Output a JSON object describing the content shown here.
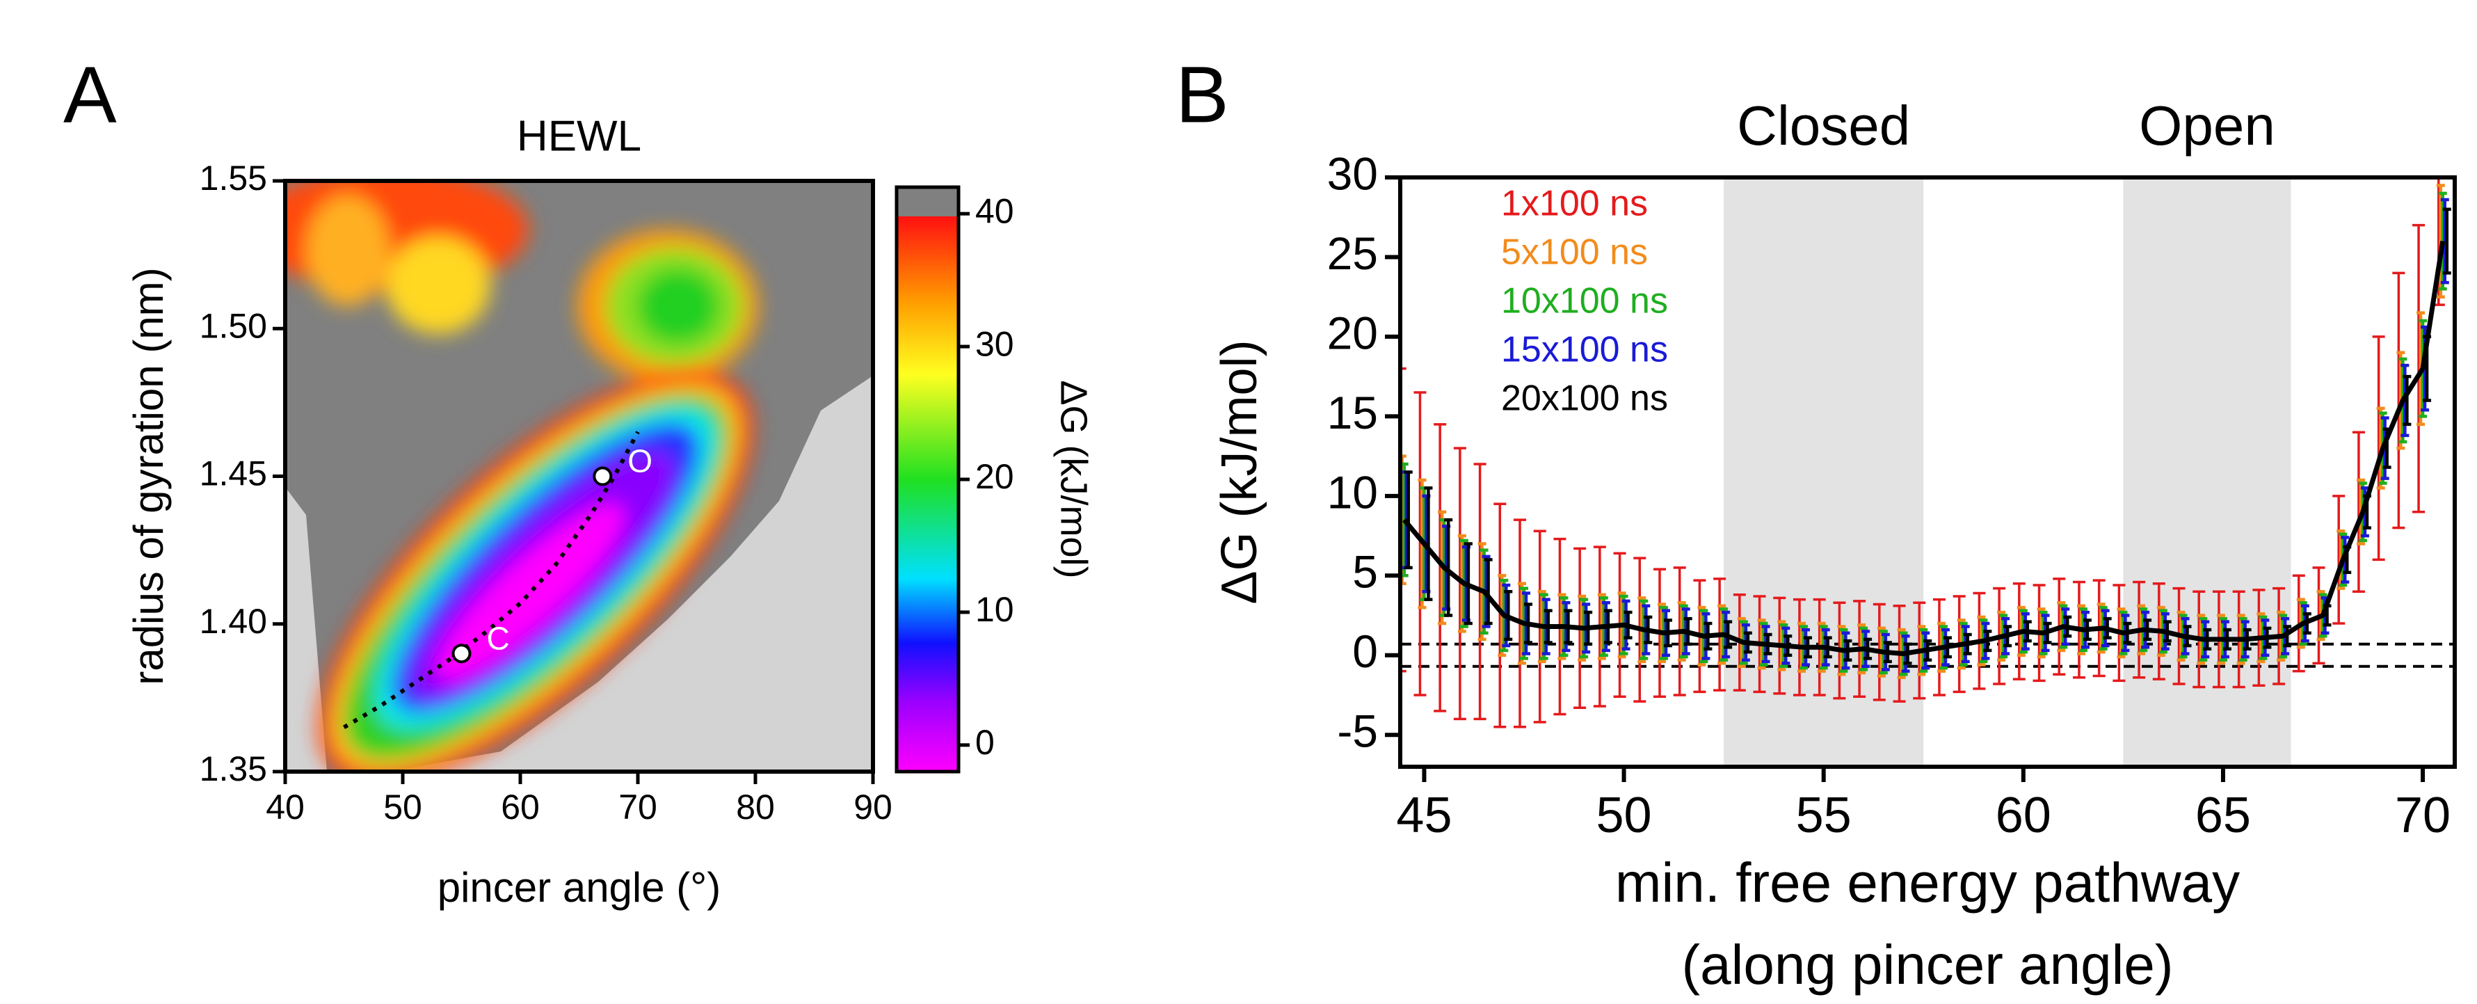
{
  "chart_data": [
    {
      "type": "heatmap",
      "panel": "A",
      "title": "HEWL",
      "xlabel": "pincer angle (°)",
      "ylabel": "radius of gyration (nm)",
      "xlim": [
        40,
        90
      ],
      "xticks": [
        40,
        50,
        60,
        70,
        80,
        90
      ],
      "ylim": [
        1.35,
        1.55
      ],
      "yticks": [
        1.35,
        {
          "value": 1.4,
          "label": "1.40"
        },
        1.45,
        {
          "value": 1.5,
          "label": "1.50"
        },
        1.55
      ],
      "colorbar": {
        "label": "ΔG (kJ/mol)",
        "lim": [
          -2,
          42
        ],
        "ticks": [
          0,
          10,
          20,
          30,
          40
        ]
      },
      "path": {
        "x": [
          45,
          48,
          51,
          54,
          57,
          60,
          63,
          66,
          68,
          70
        ],
        "y": [
          1.365,
          1.372,
          1.38,
          1.388,
          1.397,
          1.407,
          1.42,
          1.437,
          1.45,
          1.465
        ]
      },
      "points": [
        {
          "label": "C",
          "x": 55,
          "y": 1.39
        },
        {
          "label": "O",
          "x": 67,
          "y": 1.45
        }
      ]
    },
    {
      "type": "line",
      "panel": "B",
      "xlabel": [
        "min. free energy pathway",
        "(along pincer angle)"
      ],
      "ylabel": "ΔG (kJ/mol)",
      "xlim": [
        44.4,
        70.8
      ],
      "xticks": [
        45,
        50,
        55,
        60,
        65,
        70
      ],
      "ylim": [
        -7,
        30
      ],
      "yticks": [
        -5,
        0,
        5,
        10,
        15,
        20,
        25,
        30
      ],
      "regions": [
        {
          "label": "Closed",
          "x": [
            52.5,
            57.5
          ]
        },
        {
          "label": "Open",
          "x": [
            62.5,
            66.7
          ]
        }
      ],
      "hlines": [
        0.7,
        -0.7
      ],
      "x": [
        44.5,
        45,
        45.5,
        46,
        46.5,
        47,
        47.5,
        48,
        48.5,
        49,
        49.5,
        50,
        50.5,
        51,
        51.5,
        52,
        52.5,
        53,
        53.5,
        54,
        54.5,
        55,
        55.5,
        56,
        56.5,
        57,
        57.5,
        58,
        58.5,
        59,
        59.5,
        60,
        60.5,
        61,
        61.5,
        62,
        62.5,
        63,
        63.5,
        64,
        64.5,
        65,
        65.5,
        66,
        66.5,
        67,
        67.5,
        68,
        68.5,
        69,
        69.5,
        70,
        70.5
      ],
      "series": [
        {
          "name": "1x100 ns",
          "color": "#e41a1c",
          "values": [
            8.5,
            7,
            5.5,
            4.5,
            4,
            2.5,
            2,
            1.8,
            1.8,
            1.7,
            1.8,
            1.9,
            1.6,
            1.4,
            1.5,
            1.2,
            1.3,
            0.8,
            0.7,
            0.6,
            0.5,
            0.5,
            0.3,
            0.4,
            0.2,
            0.1,
            0.3,
            0.5,
            0.7,
            0.9,
            1.2,
            1.5,
            1.4,
            1.8,
            1.6,
            1.7,
            1.4,
            1.6,
            1.5,
            1.2,
            1,
            1,
            1,
            1.1,
            1.2,
            2,
            2.5,
            6,
            9,
            13,
            16,
            18,
            26
          ],
          "errors": [
            9.5,
            9.5,
            9,
            8.5,
            8,
            7,
            6.5,
            6,
            5.5,
            5,
            5,
            4.5,
            4.5,
            4,
            4,
            3.5,
            3.5,
            3,
            3,
            3,
            3,
            3,
            3,
            3,
            3,
            3,
            3,
            3,
            3,
            3,
            3,
            3,
            3,
            3,
            3,
            3,
            3,
            3,
            3,
            3,
            3,
            3,
            3,
            3,
            3,
            3,
            3,
            4,
            5,
            7,
            8,
            9,
            4
          ]
        },
        {
          "name": "5x100 ns",
          "color": "#f28c1c",
          "values": [
            8.5,
            7,
            5.5,
            4.5,
            4,
            2.5,
            2,
            1.8,
            1.8,
            1.7,
            1.8,
            1.9,
            1.6,
            1.4,
            1.5,
            1.2,
            1.3,
            0.8,
            0.7,
            0.6,
            0.5,
            0.5,
            0.3,
            0.4,
            0.2,
            0.1,
            0.3,
            0.5,
            0.7,
            0.9,
            1.2,
            1.5,
            1.4,
            1.8,
            1.6,
            1.7,
            1.4,
            1.6,
            1.5,
            1.2,
            1,
            1,
            1,
            1.1,
            1.2,
            2,
            2.5,
            6,
            9,
            13,
            16,
            18,
            26
          ],
          "errors": [
            4,
            4,
            3.5,
            3,
            3,
            2.5,
            2.5,
            2.2,
            2,
            2,
            2,
            2,
            2,
            1.8,
            1.8,
            1.8,
            1.8,
            1.5,
            1.5,
            1.5,
            1.5,
            1.5,
            1.5,
            1.5,
            1.5,
            1.5,
            1.5,
            1.5,
            1.5,
            1.5,
            1.5,
            1.5,
            1.5,
            1.5,
            1.5,
            1.5,
            1.5,
            1.5,
            1.5,
            1.5,
            1.5,
            1.5,
            1.5,
            1.5,
            1.5,
            1.5,
            1.5,
            1.8,
            2,
            2.5,
            3,
            3.5,
            3.5
          ]
        },
        {
          "name": "10x100 ns",
          "color": "#1fae1f",
          "values": [
            8.5,
            7,
            5.5,
            4.5,
            4,
            2.5,
            2,
            1.8,
            1.8,
            1.7,
            1.8,
            1.9,
            1.6,
            1.4,
            1.5,
            1.2,
            1.3,
            0.8,
            0.7,
            0.6,
            0.5,
            0.5,
            0.3,
            0.4,
            0.2,
            0.1,
            0.3,
            0.5,
            0.7,
            0.9,
            1.2,
            1.5,
            1.4,
            1.8,
            1.6,
            1.7,
            1.4,
            1.6,
            1.5,
            1.2,
            1,
            1,
            1,
            1.1,
            1.2,
            2,
            2.5,
            6,
            9,
            13,
            16,
            18,
            26
          ],
          "errors": [
            3.5,
            3.5,
            3,
            2.7,
            2.6,
            2.2,
            2.2,
            2,
            1.8,
            1.8,
            1.8,
            1.8,
            1.8,
            1.6,
            1.6,
            1.6,
            1.6,
            1.3,
            1.3,
            1.3,
            1.3,
            1.3,
            1.3,
            1.3,
            1.3,
            1.3,
            1.3,
            1.3,
            1.3,
            1.3,
            1.3,
            1.3,
            1.3,
            1.3,
            1.3,
            1.3,
            1.3,
            1.3,
            1.3,
            1.3,
            1.3,
            1.3,
            1.3,
            1.3,
            1.3,
            1.3,
            1.3,
            1.6,
            1.8,
            2.2,
            2.6,
            3,
            3
          ]
        },
        {
          "name": "15x100 ns",
          "color": "#1a1ad6",
          "values": [
            8.5,
            7,
            5.5,
            4.5,
            4,
            2.5,
            2,
            1.8,
            1.8,
            1.7,
            1.8,
            1.9,
            1.6,
            1.4,
            1.5,
            1.2,
            1.3,
            0.8,
            0.7,
            0.6,
            0.5,
            0.5,
            0.3,
            0.4,
            0.2,
            0.1,
            0.3,
            0.5,
            0.7,
            0.9,
            1.2,
            1.5,
            1.4,
            1.8,
            1.6,
            1.7,
            1.4,
            1.6,
            1.5,
            1.2,
            1,
            1,
            1,
            1.1,
            1.2,
            2,
            2.5,
            6,
            9,
            13,
            16,
            18,
            26
          ],
          "errors": [
            3,
            3,
            2.6,
            2.3,
            2.2,
            1.9,
            1.9,
            1.7,
            1.5,
            1.5,
            1.5,
            1.5,
            1.5,
            1.4,
            1.4,
            1.4,
            1.4,
            1.1,
            1.1,
            1.1,
            1.1,
            1.1,
            1.1,
            1.1,
            1.1,
            1.1,
            1.1,
            1.1,
            1.1,
            1.1,
            1.1,
            1.1,
            1.1,
            1.1,
            1.1,
            1.1,
            1.1,
            1.1,
            1.1,
            1.1,
            1.1,
            1.1,
            1.1,
            1.1,
            1.1,
            1.1,
            1.1,
            1.4,
            1.5,
            1.9,
            2.2,
            2.6,
            2.6
          ]
        },
        {
          "name": "20x100 ns",
          "color": "#000000",
          "values": [
            8.5,
            7,
            5.5,
            4.5,
            4,
            2.5,
            2,
            1.8,
            1.8,
            1.7,
            1.8,
            1.9,
            1.6,
            1.4,
            1.5,
            1.2,
            1.3,
            0.8,
            0.7,
            0.6,
            0.5,
            0.5,
            0.3,
            0.4,
            0.2,
            0.1,
            0.3,
            0.5,
            0.7,
            0.9,
            1.2,
            1.5,
            1.4,
            1.8,
            1.6,
            1.7,
            1.4,
            1.6,
            1.5,
            1.2,
            1,
            1,
            1,
            1.1,
            1.2,
            2,
            2.5,
            6,
            9,
            13,
            16,
            18,
            26
          ],
          "errors": [
            3,
            3.5,
            3,
            2.5,
            2,
            1.5,
            1.2,
            1,
            1,
            1,
            1,
            0.8,
            0.8,
            0.8,
            0.8,
            0.8,
            0.8,
            0.6,
            0.6,
            0.6,
            0.6,
            0.6,
            0.6,
            0.6,
            0.6,
            0.6,
            0.6,
            0.6,
            0.6,
            0.6,
            0.6,
            0.6,
            0.6,
            0.6,
            0.6,
            0.6,
            0.6,
            0.6,
            0.6,
            0.6,
            0.6,
            0.6,
            0.6,
            0.6,
            0.6,
            0.6,
            0.6,
            0.8,
            1,
            1.2,
            1.5,
            2,
            2
          ]
        }
      ]
    }
  ]
}
